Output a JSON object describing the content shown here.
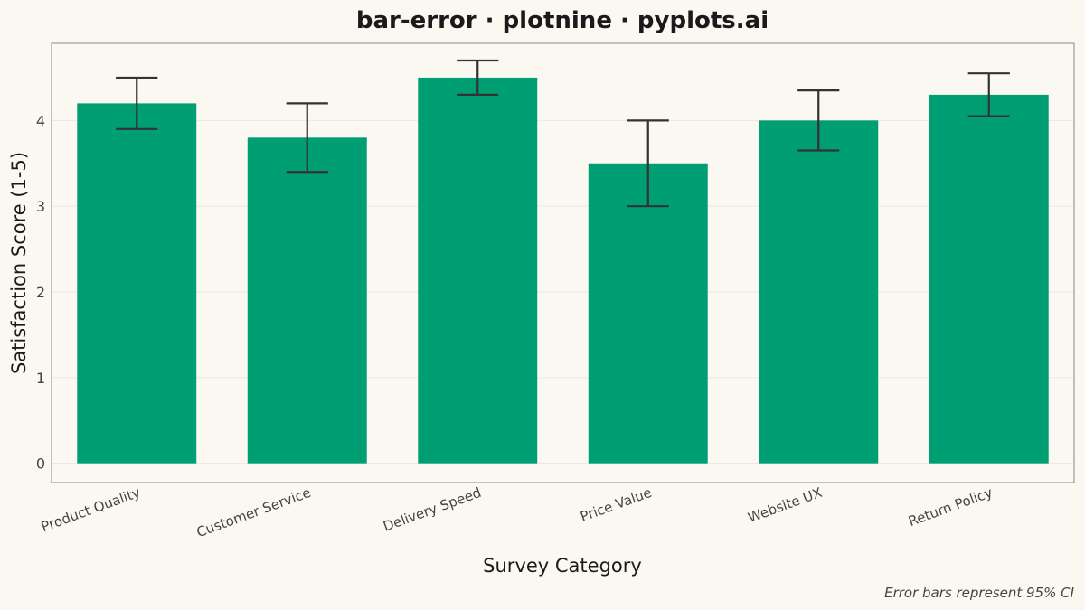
{
  "chart_data": {
    "type": "bar",
    "title": "bar-error · plotnine · pyplots.ai",
    "xlabel": "Survey Category",
    "ylabel": "Satisfaction Score (1-5)",
    "caption": "Error bars represent 95% CI",
    "categories": [
      "Product Quality",
      "Customer Service",
      "Delivery Speed",
      "Price Value",
      "Website UX",
      "Return Policy"
    ],
    "values": [
      4.2,
      3.8,
      4.5,
      3.5,
      4.0,
      4.3
    ],
    "error_lower": [
      3.9,
      3.4,
      4.3,
      3.0,
      3.65,
      4.05
    ],
    "error_upper": [
      4.5,
      4.2,
      4.7,
      4.0,
      4.35,
      4.55
    ],
    "ylim": [
      -0.225,
      4.9
    ],
    "yticks": [
      0,
      1,
      2,
      3,
      4
    ],
    "grid": true,
    "colors": {
      "bar": "#009E73",
      "error_bar": "#333333",
      "background": "#FAF8F1"
    }
  }
}
